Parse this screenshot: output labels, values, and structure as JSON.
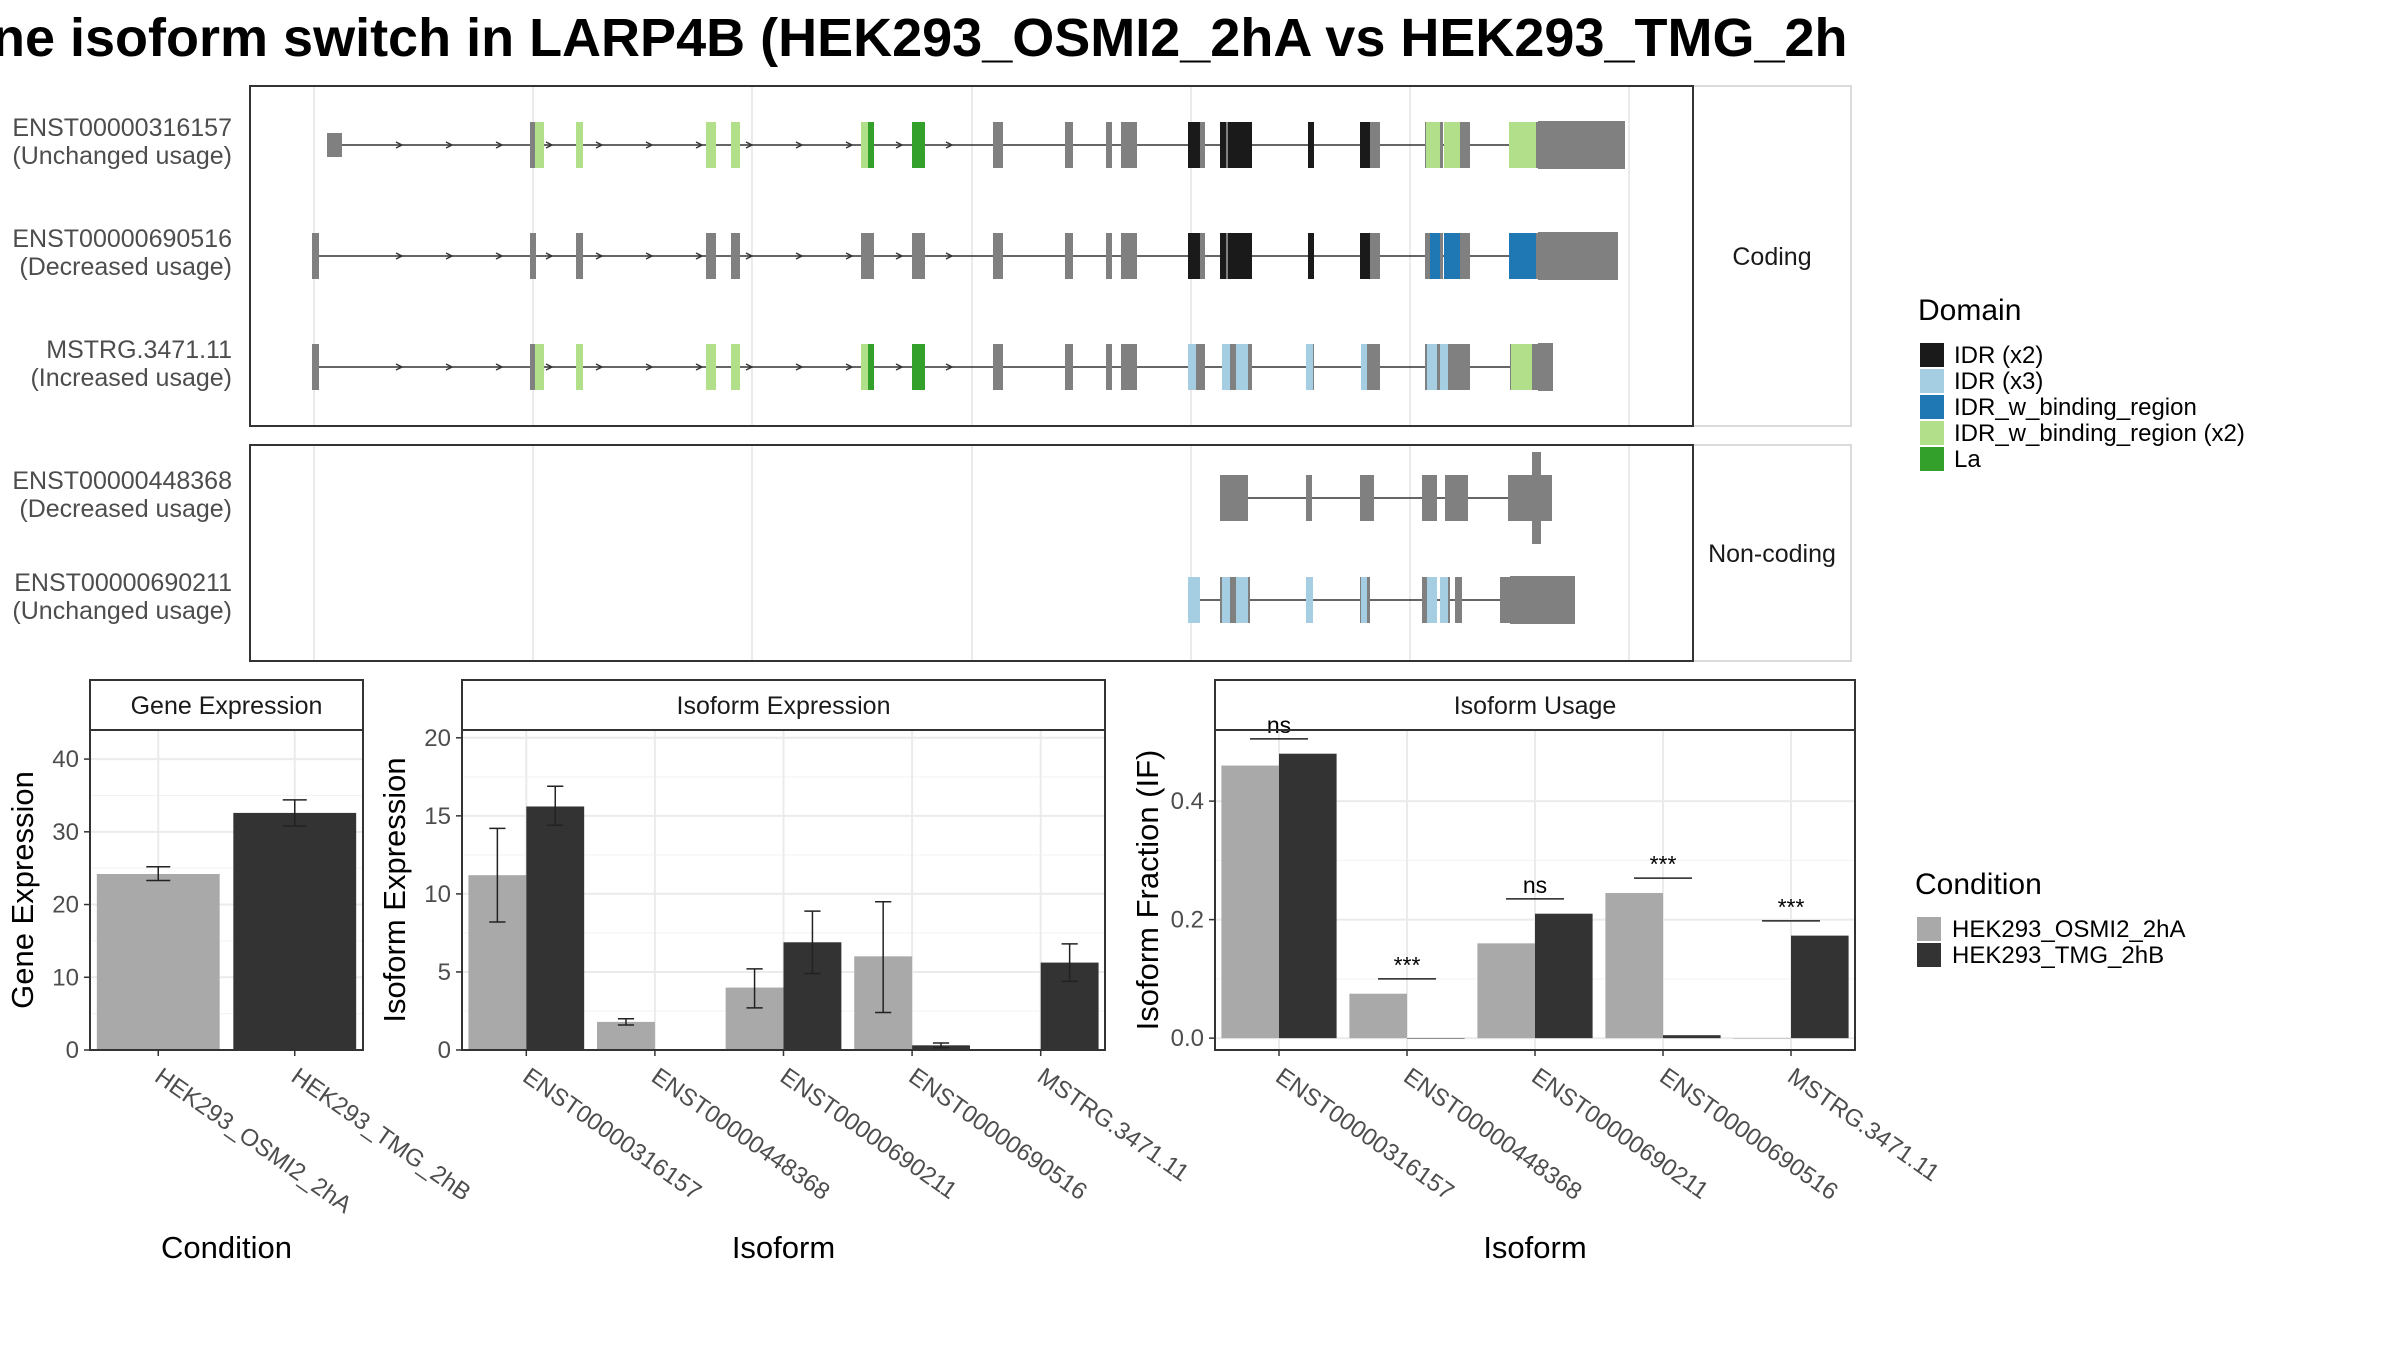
{
  "title": "ne isoform switch in LARP4B (HEK293_OSMI2_2hA vs HEK293_TMG_2h",
  "colors": {
    "IDR (x2)": "#1a1a1a",
    "IDR (x3)": "#a6cee3",
    "IDR_w_binding_region": "#1f78b4",
    "IDR_w_binding_region (x2)": "#b2df8a",
    "La": "#33a02c",
    "none": "#808080",
    "cond1": "#a9a9a9",
    "cond2": "#333333",
    "grid": "#ebebeb",
    "strip_bg": "#ffffff",
    "axis_text": "#4d4d4d"
  },
  "structure": {
    "facets": [
      "Coding",
      "Non-coding"
    ],
    "transcripts": [
      {
        "id": "ENST00000316157",
        "usage": "(Unchanged usage)",
        "facet": "Coding"
      },
      {
        "id": "ENST00000690516",
        "usage": "(Decreased usage)",
        "facet": "Coding"
      },
      {
        "id": "MSTRG.3471.11",
        "usage": "(Increased usage)",
        "facet": "Coding"
      },
      {
        "id": "ENST00000448368",
        "usage": "(Decreased usage)",
        "facet": "Non-coding"
      },
      {
        "id": "ENST00000690211",
        "usage": "(Unchanged usage)",
        "facet": "Non-coding"
      }
    ]
  },
  "legend_domain": {
    "title": "Domain",
    "items": [
      {
        "label": "IDR (x2)",
        "key": "IDR (x2)"
      },
      {
        "label": "IDR (x3)",
        "key": "IDR (x3)"
      },
      {
        "label": "IDR_w_binding_region",
        "key": "IDR_w_binding_region"
      },
      {
        "label": "IDR_w_binding_region (x2)",
        "key": "IDR_w_binding_region (x2)"
      },
      {
        "label": "La",
        "key": "La"
      }
    ]
  },
  "legend_condition": {
    "title": "Condition",
    "items": [
      {
        "label": "HEK293_OSMI2_2hA",
        "key": "cond1"
      },
      {
        "label": "HEK293_TMG_2hB",
        "key": "cond2"
      }
    ]
  },
  "chart_data": [
    {
      "type": "bar",
      "title": "Gene Expression",
      "xlabel": "Condition",
      "ylabel": "Gene Expression",
      "ylim": [
        0,
        44
      ],
      "yticks": [
        0,
        10,
        20,
        30,
        40
      ],
      "categories": [
        "HEK293_OSMI2_2hA",
        "HEK293_TMG_2hB"
      ],
      "values": [
        24.2,
        32.6
      ],
      "errors": [
        [
          23.3,
          25.2
        ],
        [
          30.8,
          34.4
        ]
      ]
    },
    {
      "type": "bar",
      "title": "Isoform Expression",
      "xlabel": "Isoform",
      "ylabel": "Isoform Expression",
      "ylim": [
        0,
        20.5
      ],
      "yticks": [
        0,
        5,
        10,
        15,
        20
      ],
      "categories": [
        "ENST00000316157",
        "ENST00000448368",
        "ENST00000690211",
        "ENST00000690516",
        "MSTRG.3471.11"
      ],
      "series": [
        {
          "name": "HEK293_OSMI2_2hA",
          "values": [
            11.2,
            1.8,
            4.0,
            6.0,
            0.0
          ],
          "errors": [
            [
              8.2,
              14.2
            ],
            [
              1.6,
              2.0
            ],
            [
              2.7,
              5.2
            ],
            [
              2.4,
              9.5
            ],
            [
              0.0,
              0.0
            ]
          ]
        },
        {
          "name": "HEK293_TMG_2hB",
          "values": [
            15.6,
            0.0,
            6.9,
            0.3,
            5.6
          ],
          "errors": [
            [
              14.4,
              16.9
            ],
            [
              0.0,
              0.0
            ],
            [
              4.9,
              8.9
            ],
            [
              0.15,
              0.45
            ],
            [
              4.4,
              6.8
            ]
          ]
        }
      ]
    },
    {
      "type": "bar",
      "title": "Isoform Usage",
      "xlabel": "Isoform",
      "ylabel": "Isoform Fraction (IF)",
      "ylim": [
        -0.02,
        0.52
      ],
      "yticks": [
        0.0,
        0.2,
        0.4
      ],
      "ytick_labels": [
        "0.0",
        "0.2",
        "0.4"
      ],
      "categories": [
        "ENST00000316157",
        "ENST00000448368",
        "ENST00000690211",
        "ENST00000690516",
        "MSTRG.3471.11"
      ],
      "series": [
        {
          "name": "HEK293_OSMI2_2hA",
          "values": [
            0.46,
            0.075,
            0.16,
            0.245,
            0.0
          ]
        },
        {
          "name": "HEK293_TMG_2hB",
          "values": [
            0.48,
            0.0,
            0.21,
            0.005,
            0.173
          ]
        }
      ],
      "significance": [
        "ns",
        "***",
        "ns",
        "***",
        "***"
      ]
    }
  ]
}
